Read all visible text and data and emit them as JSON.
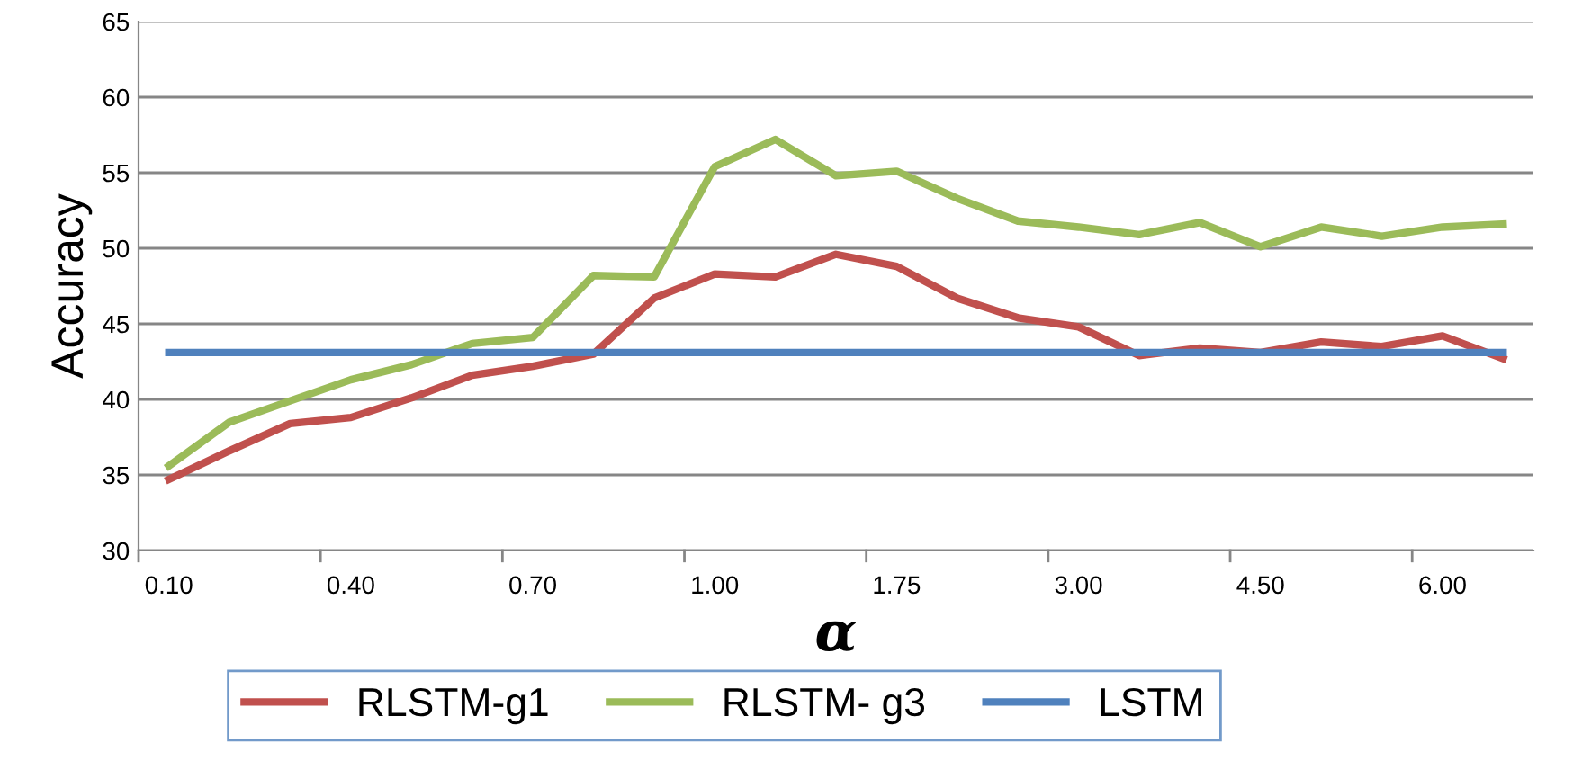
{
  "chart_data": {
    "type": "line",
    "xlabel": "α",
    "ylabel": "Accuracy",
    "categories": [
      "0.10",
      null,
      null,
      "0.40",
      null,
      null,
      "0.70",
      null,
      null,
      "1.00",
      null,
      null,
      "1.75",
      null,
      null,
      "3.00",
      null,
      null,
      "4.50",
      null,
      null,
      "6.00",
      null
    ],
    "series": [
      {
        "name": "RLSTM-g1",
        "color": "#c0504d",
        "values": [
          34.7,
          36.6,
          38.4,
          38.8,
          40.1,
          41.6,
          42.2,
          43.0,
          46.7,
          48.3,
          48.1,
          49.6,
          48.8,
          46.7,
          45.4,
          44.8,
          42.9,
          43.4,
          43.1,
          43.8,
          43.5,
          44.2,
          42.7
        ]
      },
      {
        "name": "RLSTM- g3",
        "color": "#9bbb59",
        "values": [
          35.6,
          38.5,
          39.9,
          41.3,
          42.3,
          43.7,
          44.1,
          48.2,
          48.1,
          55.4,
          57.2,
          54.8,
          55.1,
          53.3,
          51.8,
          51.4,
          50.9,
          51.7,
          50.1,
          51.4,
          50.8,
          51.4,
          51.6
        ]
      },
      {
        "name": "LSTM",
        "color": "#4f81bd",
        "values": [
          43.1,
          43.1,
          43.1,
          43.1,
          43.1,
          43.1,
          43.1,
          43.1,
          43.1,
          43.1,
          43.1,
          43.1,
          43.1,
          43.1,
          43.1,
          43.1,
          43.1,
          43.1,
          43.1,
          43.1,
          43.1,
          43.1,
          43.1
        ]
      }
    ],
    "ylim": [
      30,
      65
    ],
    "yticks": [
      30,
      35,
      40,
      45,
      50,
      55,
      60,
      65
    ],
    "grid": "y",
    "legend": "bottom",
    "marker": "none",
    "line_style": "solid"
  }
}
